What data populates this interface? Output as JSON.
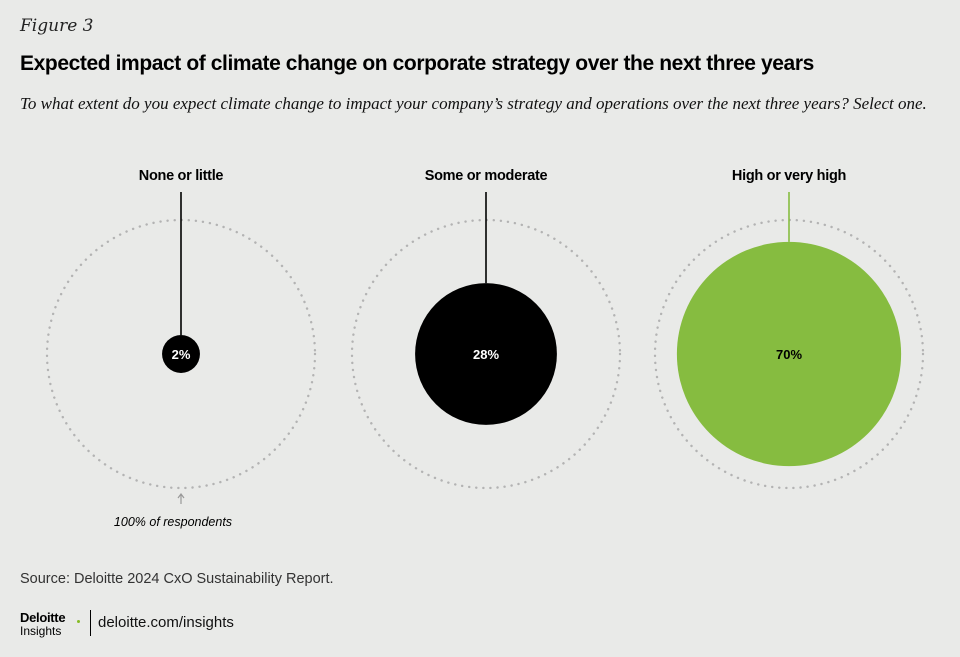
{
  "figure_label": "Figure 3",
  "title": "Expected impact of climate change on corporate strategy over the next three years",
  "subtitle": "To what extent do you expect climate change to impact your company’s strategy and operations over the next three years? Select one.",
  "chart_data": {
    "type": "bubble",
    "unit": "%",
    "total_label": "100% of respondents",
    "categories": [
      "None or little",
      "Some or moderate",
      "High or very high"
    ],
    "values": [
      2,
      28,
      70
    ],
    "value_labels": [
      "2%",
      "28%",
      "70%"
    ],
    "colors": [
      "#000000",
      "#000000",
      "#86bc40"
    ],
    "label_colors": [
      "#ffffff",
      "#ffffff",
      "#000000"
    ],
    "connector_colors": [
      "#000000",
      "#000000",
      "#86bc40"
    ],
    "outline_color": "#b3b3b3"
  },
  "source": "Source: Deloitte 2024 CxO Sustainability Report.",
  "footer": {
    "logo_text": "Deloitte",
    "logo_dot_color": "#86bc25",
    "logo_subtext": "Insights",
    "site": "deloitte.com/insights"
  }
}
